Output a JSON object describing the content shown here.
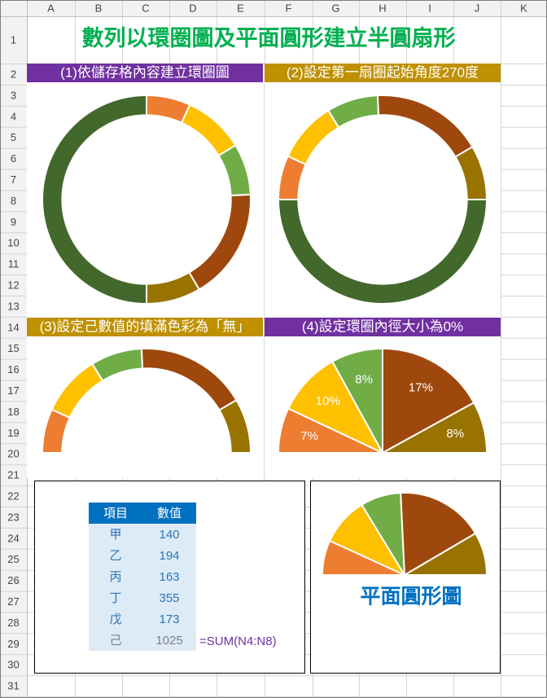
{
  "sheet_title": "數列以環圈圖及平面圓形建立半圓扇形",
  "columns": [
    "A",
    "B",
    "C",
    "D",
    "E",
    "F",
    "G",
    "H",
    "I",
    "J",
    "K"
  ],
  "rows": [
    1,
    2,
    3,
    4,
    5,
    6,
    7,
    8,
    9,
    10,
    11,
    12,
    13,
    14,
    15,
    16,
    17,
    18,
    19,
    20,
    21,
    22,
    23,
    24,
    25,
    26,
    27,
    28,
    29,
    30,
    31
  ],
  "chart_data": [
    {
      "type": "doughnut",
      "title": "(1)依儲存格內容建立環圈圖",
      "title_color": "#7030a0",
      "start_angle": 0,
      "categories": [
        "甲",
        "乙",
        "丙",
        "丁",
        "戊",
        "己"
      ],
      "values": [
        140,
        194,
        163,
        355,
        173,
        1025
      ],
      "colors": [
        "#ed7d31",
        "#ffc000",
        "#70ad47",
        "#9e480e",
        "#997300",
        "#43682b"
      ]
    },
    {
      "type": "doughnut",
      "title": "(2)設定第一扇圈起始角度270度",
      "title_color": "#bf9000",
      "start_angle": 270,
      "categories": [
        "甲",
        "乙",
        "丙",
        "丁",
        "戊",
        "己"
      ],
      "values": [
        140,
        194,
        163,
        355,
        173,
        1025
      ],
      "colors": [
        "#ed7d31",
        "#ffc000",
        "#70ad47",
        "#9e480e",
        "#997300",
        "#43682b"
      ]
    },
    {
      "type": "doughnut",
      "title": "(3)設定己數值的填滿色彩為「無」",
      "title_color": "#bf9000",
      "start_angle": 270,
      "categories": [
        "甲",
        "乙",
        "丙",
        "丁",
        "戊",
        "己"
      ],
      "values": [
        140,
        194,
        163,
        355,
        173,
        1025
      ],
      "colors": [
        "#ed7d31",
        "#ffc000",
        "#70ad47",
        "#9e480e",
        "#997300",
        null
      ]
    },
    {
      "type": "pie",
      "title": "(4)設定環圈內徑大小為0%",
      "title_color": "#7030a0",
      "start_angle": 270,
      "categories": [
        "甲",
        "乙",
        "丙",
        "丁",
        "戊",
        "己"
      ],
      "values": [
        7,
        10,
        8,
        17,
        8,
        50
      ],
      "value_labels": [
        "7%",
        "10%",
        "8%",
        "17%",
        "8%",
        null
      ],
      "colors": [
        "#ed7d31",
        "#ffc000",
        "#70ad47",
        "#9e480e",
        "#997300",
        null
      ]
    },
    {
      "type": "pie",
      "start_angle": 270,
      "categories": [
        "甲",
        "乙",
        "丙",
        "丁",
        "戊",
        "己"
      ],
      "values": [
        140,
        194,
        163,
        355,
        173,
        1025
      ],
      "colors": [
        "#ed7d31",
        "#ffc000",
        "#70ad47",
        "#9e480e",
        "#997300",
        null
      ]
    }
  ],
  "table": {
    "headers": [
      "項目",
      "數值"
    ],
    "rows": [
      [
        "甲",
        140
      ],
      [
        "乙",
        194
      ],
      [
        "丙",
        163
      ],
      [
        "丁",
        355
      ],
      [
        "戊",
        173
      ],
      [
        "己",
        1025
      ]
    ]
  },
  "formula": "=SUM(N4:N8)",
  "pie_caption": "平面圓形圖"
}
